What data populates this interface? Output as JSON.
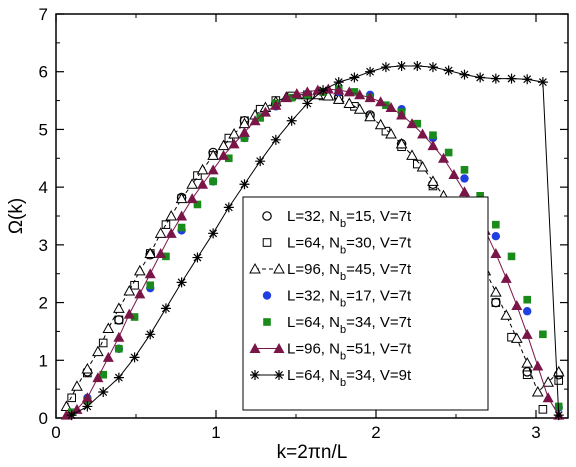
{
  "chart_data": {
    "type": "scatter",
    "xlabel": "k=2πn/L",
    "ylabel": "Ω(k)",
    "xlim": [
      0,
      3.2
    ],
    "ylim": [
      0,
      7
    ],
    "xticks": [
      0,
      1,
      2,
      3
    ],
    "yticks": [
      0,
      1,
      2,
      3,
      4,
      5,
      6,
      7
    ],
    "grid": false,
    "legend_position": "center-right",
    "series": [
      {
        "name": "L=32, N_b=15, V=7t",
        "marker": "circle-open",
        "color": "#000000",
        "line": "none",
        "x": [
          0.196,
          0.393,
          0.589,
          0.785,
          0.982,
          1.178,
          1.374,
          1.571,
          1.767,
          1.963,
          2.16,
          2.356,
          2.553,
          2.749,
          2.945,
          3.142
        ],
        "y": [
          0.8,
          1.7,
          2.83,
          3.82,
          4.6,
          5.15,
          5.45,
          5.6,
          5.55,
          5.25,
          4.75,
          4.05,
          3.1,
          2.0,
          0.8,
          0.75
        ]
      },
      {
        "name": "L=64, N_b=30, V=7t",
        "marker": "square-open",
        "color": "#000000",
        "line": "none",
        "x": [
          0.098,
          0.196,
          0.295,
          0.393,
          0.491,
          0.589,
          0.687,
          0.785,
          0.884,
          0.982,
          1.08,
          1.178,
          1.276,
          1.374,
          1.473,
          1.571,
          1.669,
          1.767,
          1.865,
          1.963,
          2.062,
          2.16,
          2.258,
          2.356,
          2.454,
          2.553,
          2.651,
          2.749,
          2.847,
          2.945,
          3.043,
          3.142
        ],
        "y": [
          0.35,
          0.78,
          1.3,
          1.7,
          2.3,
          2.85,
          3.35,
          3.8,
          4.2,
          4.55,
          4.85,
          5.15,
          5.35,
          5.5,
          5.58,
          5.6,
          5.58,
          5.52,
          5.4,
          5.22,
          4.97,
          4.7,
          4.4,
          4.02,
          3.62,
          3.1,
          2.6,
          2.0,
          1.4,
          0.75,
          0.15,
          0.65
        ]
      },
      {
        "name": "L=96, N_b=45, V=7t",
        "marker": "triangle-open",
        "color": "#000000",
        "line": "dashed",
        "x": [
          0.065,
          0.131,
          0.196,
          0.262,
          0.327,
          0.393,
          0.458,
          0.524,
          0.589,
          0.654,
          0.72,
          0.785,
          0.851,
          0.916,
          0.982,
          1.047,
          1.113,
          1.178,
          1.244,
          1.309,
          1.374,
          1.44,
          1.505,
          1.571,
          1.636,
          1.702,
          1.767,
          1.833,
          1.898,
          1.963,
          2.029,
          2.094,
          2.16,
          2.225,
          2.291,
          2.356,
          2.422,
          2.487,
          2.553,
          2.618,
          2.683,
          2.749,
          2.814,
          2.88,
          2.945,
          3.011,
          3.076,
          3.142
        ],
        "y": [
          0.2,
          0.55,
          0.85,
          1.15,
          1.55,
          1.9,
          2.2,
          2.55,
          2.85,
          3.2,
          3.5,
          3.8,
          4.05,
          4.3,
          4.55,
          4.72,
          4.92,
          5.1,
          5.25,
          5.38,
          5.48,
          5.56,
          5.6,
          5.6,
          5.6,
          5.58,
          5.52,
          5.45,
          5.35,
          5.22,
          5.08,
          4.92,
          4.75,
          4.55,
          4.35,
          4.1,
          3.85,
          3.55,
          3.22,
          2.9,
          2.55,
          2.18,
          1.78,
          1.38,
          0.95,
          0.45,
          0.62,
          0.8
        ]
      },
      {
        "name": "L=32, N_b=17, V=7t",
        "marker": "circle-filled",
        "color": "#1f3fe0",
        "line": "none",
        "x": [
          0.196,
          0.393,
          0.589,
          0.785,
          0.982,
          1.178,
          1.374,
          1.571,
          1.767,
          1.963,
          2.16,
          2.356,
          2.553,
          2.749,
          2.945,
          3.142
        ],
        "y": [
          0.35,
          1.2,
          2.25,
          3.25,
          4.1,
          4.85,
          5.4,
          5.62,
          5.65,
          5.6,
          5.35,
          4.85,
          4.15,
          3.15,
          1.85,
          0.18
        ]
      },
      {
        "name": "L=64, N_b=34, V=7t",
        "marker": "square-filled",
        "color": "#1a8a1a",
        "line": "none",
        "x": [
          0.098,
          0.196,
          0.295,
          0.393,
          0.491,
          0.589,
          0.687,
          0.785,
          0.884,
          0.982,
          1.08,
          1.178,
          1.276,
          1.374,
          1.473,
          1.571,
          1.669,
          1.767,
          1.865,
          1.963,
          2.062,
          2.16,
          2.258,
          2.356,
          2.454,
          2.553,
          2.651,
          2.749,
          2.847,
          2.945,
          3.043,
          3.142
        ],
        "y": [
          0.1,
          0.3,
          0.75,
          1.2,
          1.75,
          2.3,
          2.8,
          3.3,
          3.7,
          4.1,
          4.5,
          4.85,
          5.2,
          5.45,
          5.55,
          5.6,
          5.65,
          5.7,
          5.65,
          5.55,
          5.42,
          5.3,
          5.1,
          4.9,
          4.6,
          4.3,
          3.85,
          3.35,
          2.8,
          2.05,
          1.45,
          0.2
        ]
      },
      {
        "name": "L=96, N_b=51, V=7t",
        "marker": "triangle-filled",
        "color": "#7a1548",
        "line": "solid",
        "x": [
          0.065,
          0.131,
          0.196,
          0.262,
          0.327,
          0.393,
          0.458,
          0.524,
          0.589,
          0.654,
          0.72,
          0.785,
          0.851,
          0.916,
          0.982,
          1.047,
          1.113,
          1.178,
          1.244,
          1.309,
          1.374,
          1.44,
          1.505,
          1.571,
          1.636,
          1.702,
          1.767,
          1.833,
          1.898,
          1.963,
          2.029,
          2.094,
          2.16,
          2.225,
          2.291,
          2.356,
          2.422,
          2.487,
          2.553,
          2.618,
          2.683,
          2.749,
          2.814,
          2.88,
          2.945,
          3.011,
          3.076,
          3.142
        ],
        "y": [
          0.05,
          0.15,
          0.35,
          0.7,
          1.05,
          1.4,
          1.8,
          2.15,
          2.5,
          2.85,
          3.2,
          3.5,
          3.8,
          4.05,
          4.3,
          4.55,
          4.75,
          4.95,
          5.15,
          5.3,
          5.42,
          5.55,
          5.62,
          5.65,
          5.68,
          5.7,
          5.68,
          5.65,
          5.6,
          5.55,
          5.48,
          5.38,
          5.25,
          5.1,
          4.92,
          4.72,
          4.5,
          4.22,
          3.92,
          3.6,
          3.25,
          2.85,
          2.42,
          1.95,
          1.45,
          0.9,
          0.35,
          0.05
        ]
      },
      {
        "name": "L=64, N_b=34, V=9t",
        "marker": "star",
        "color": "#000000",
        "line": "solid",
        "x": [
          0.098,
          0.196,
          0.295,
          0.393,
          0.491,
          0.589,
          0.687,
          0.785,
          0.884,
          0.982,
          1.08,
          1.178,
          1.276,
          1.374,
          1.473,
          1.571,
          1.669,
          1.767,
          1.865,
          1.963,
          2.062,
          2.16,
          2.258,
          2.356,
          2.454,
          2.553,
          2.651,
          2.749,
          2.847,
          2.945,
          3.043,
          3.142
        ],
        "y": [
          0.05,
          0.2,
          0.45,
          0.7,
          1.05,
          1.45,
          1.9,
          2.35,
          2.78,
          3.2,
          3.65,
          4.05,
          4.45,
          4.82,
          5.15,
          5.45,
          5.68,
          5.82,
          5.9,
          6.0,
          6.08,
          6.1,
          6.1,
          6.08,
          6.02,
          5.95,
          5.9,
          5.88,
          5.88,
          5.87,
          5.82,
          0.05
        ]
      }
    ]
  }
}
